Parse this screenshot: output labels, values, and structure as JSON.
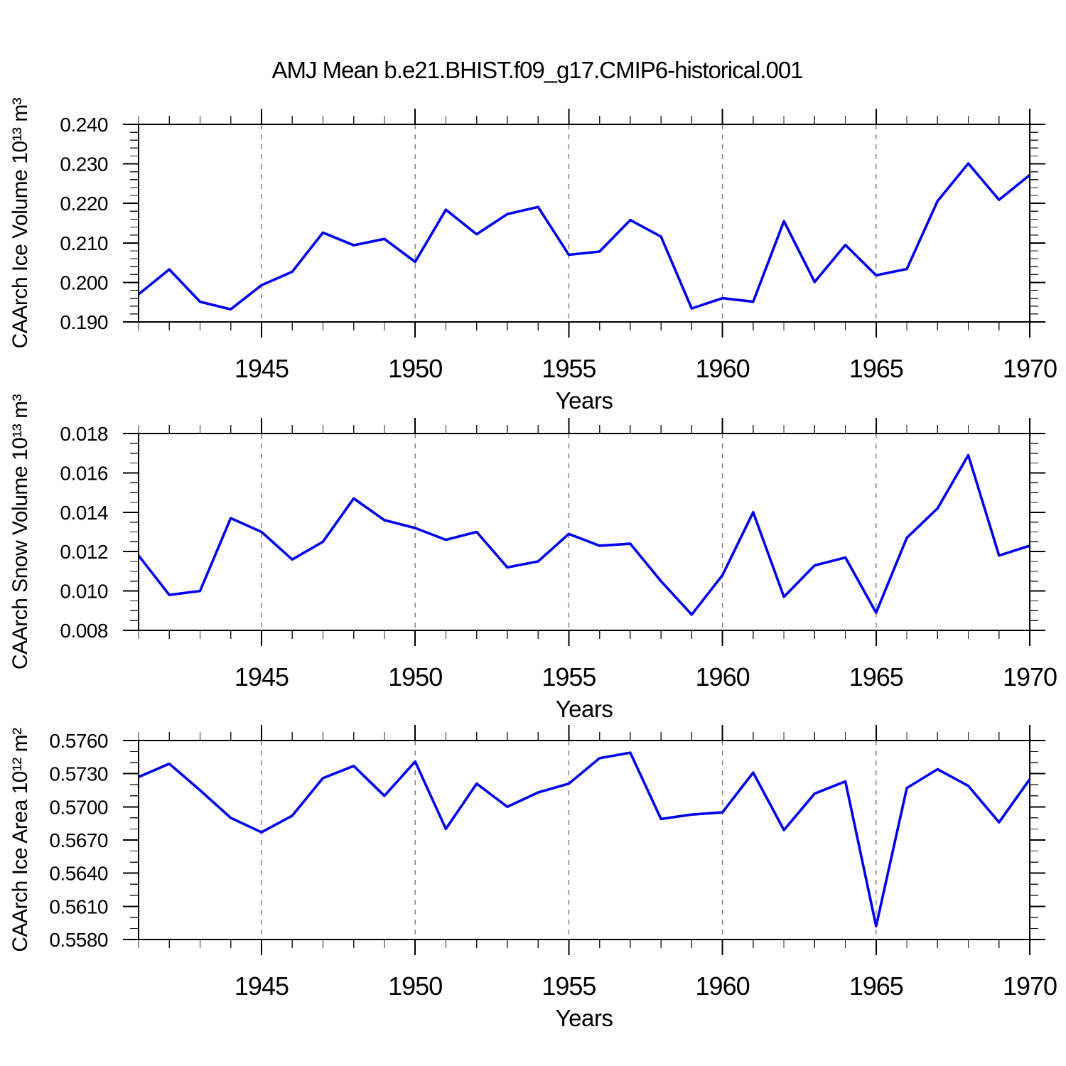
{
  "title": "AMJ Mean b.e21.BHIST.f09_g17.CMIP6-historical.001",
  "colors": {
    "line": "#0000f0",
    "grid": "#7b7b7b",
    "axis": "#000000"
  },
  "chart_data": [
    {
      "type": "line",
      "name": "caarch-ice-volume",
      "ylabel": "CAArch Ice Volume 10¹³ m³",
      "xlabel": "Years",
      "x": [
        1941,
        1942,
        1943,
        1944,
        1945,
        1946,
        1947,
        1948,
        1949,
        1950,
        1951,
        1952,
        1953,
        1954,
        1955,
        1956,
        1957,
        1958,
        1959,
        1960,
        1961,
        1962,
        1963,
        1964,
        1965,
        1966,
        1967,
        1968,
        1969,
        1970
      ],
      "values": [
        0.197,
        0.2033,
        0.1951,
        0.1932,
        0.1993,
        0.2027,
        0.2126,
        0.2094,
        0.211,
        0.2052,
        0.2184,
        0.2122,
        0.2173,
        0.2191,
        0.207,
        0.2078,
        0.2158,
        0.2116,
        0.1934,
        0.196,
        0.1951,
        0.2155,
        0.2001,
        0.2095,
        0.2018,
        0.2034,
        0.2206,
        0.2301,
        0.2209,
        0.2272
      ],
      "ylim": [
        0.19,
        0.24
      ],
      "yticks": [
        0.19,
        0.2,
        0.21,
        0.22,
        0.23,
        0.24
      ],
      "ytick_labels": [
        "0.190",
        "0.200",
        "0.210",
        "0.220",
        "0.230",
        "0.240"
      ],
      "y_minor_step": 0.002,
      "xlim": [
        1941,
        1970
      ],
      "xticks": [
        1945,
        1950,
        1955,
        1960,
        1965,
        1970
      ],
      "xtick_labels": [
        "1945",
        "1950",
        "1955",
        "1960",
        "1965",
        "1970"
      ],
      "x_minor_step": 1,
      "grid_x": [
        1945,
        1950,
        1955,
        1960,
        1965
      ],
      "grid": "vertical-dashed"
    },
    {
      "type": "line",
      "name": "caarch-snow-volume",
      "ylabel": "CAArch Snow Volume 10¹³ m³",
      "xlabel": "Years",
      "x": [
        1941,
        1942,
        1943,
        1944,
        1945,
        1946,
        1947,
        1948,
        1949,
        1950,
        1951,
        1952,
        1953,
        1954,
        1955,
        1956,
        1957,
        1958,
        1959,
        1960,
        1961,
        1962,
        1963,
        1964,
        1965,
        1966,
        1967,
        1968,
        1969,
        1970
      ],
      "values": [
        0.0118,
        0.0098,
        0.01,
        0.0137,
        0.013,
        0.0116,
        0.0125,
        0.0147,
        0.0136,
        0.0132,
        0.0126,
        0.013,
        0.0112,
        0.0115,
        0.0129,
        0.0123,
        0.0124,
        0.0105,
        0.0088,
        0.0108,
        0.014,
        0.0097,
        0.0113,
        0.0117,
        0.0089,
        0.0127,
        0.0142,
        0.0169,
        0.0118,
        0.0123
      ],
      "ylim": [
        0.008,
        0.018
      ],
      "yticks": [
        0.008,
        0.01,
        0.012,
        0.014,
        0.016,
        0.018
      ],
      "ytick_labels": [
        "0.008",
        "0.010",
        "0.012",
        "0.014",
        "0.016",
        "0.018"
      ],
      "y_minor_step": 0.0005,
      "xlim": [
        1941,
        1970
      ],
      "xticks": [
        1945,
        1950,
        1955,
        1960,
        1965,
        1970
      ],
      "xtick_labels": [
        "1945",
        "1950",
        "1955",
        "1960",
        "1965",
        "1970"
      ],
      "x_minor_step": 1,
      "grid_x": [
        1945,
        1950,
        1955,
        1960,
        1965
      ],
      "grid": "vertical-dashed"
    },
    {
      "type": "line",
      "name": "caarch-ice-area",
      "ylabel": "CAArch Ice Area 10¹² m²",
      "xlabel": "Years",
      "x": [
        1941,
        1942,
        1943,
        1944,
        1945,
        1946,
        1947,
        1948,
        1949,
        1950,
        1951,
        1952,
        1953,
        1954,
        1955,
        1956,
        1957,
        1958,
        1959,
        1960,
        1961,
        1962,
        1963,
        1964,
        1965,
        1966,
        1967,
        1968,
        1969,
        1970
      ],
      "values": [
        0.5727,
        0.5739,
        0.5715,
        0.569,
        0.5677,
        0.5692,
        0.5726,
        0.5737,
        0.571,
        0.5741,
        0.568,
        0.5721,
        0.57,
        0.5713,
        0.5721,
        0.5744,
        0.5749,
        0.5689,
        0.5693,
        0.5695,
        0.5731,
        0.5679,
        0.5712,
        0.5723,
        0.5592,
        0.5717,
        0.5734,
        0.5719,
        0.5686,
        0.5725
      ],
      "ylim": [
        0.558,
        0.576
      ],
      "yticks": [
        0.558,
        0.561,
        0.564,
        0.567,
        0.57,
        0.573,
        0.576
      ],
      "ytick_labels": [
        "0.5580",
        "0.5610",
        "0.5640",
        "0.5670",
        "0.5700",
        "0.5730",
        "0.5760"
      ],
      "y_minor_step": 0.001,
      "xlim": [
        1941,
        1970
      ],
      "xticks": [
        1945,
        1950,
        1955,
        1960,
        1965,
        1970
      ],
      "xtick_labels": [
        "1945",
        "1950",
        "1955",
        "1960",
        "1965",
        "1970"
      ],
      "x_minor_step": 1,
      "grid_x": [
        1945,
        1950,
        1955,
        1960,
        1965
      ],
      "grid": "vertical-dashed"
    }
  ]
}
